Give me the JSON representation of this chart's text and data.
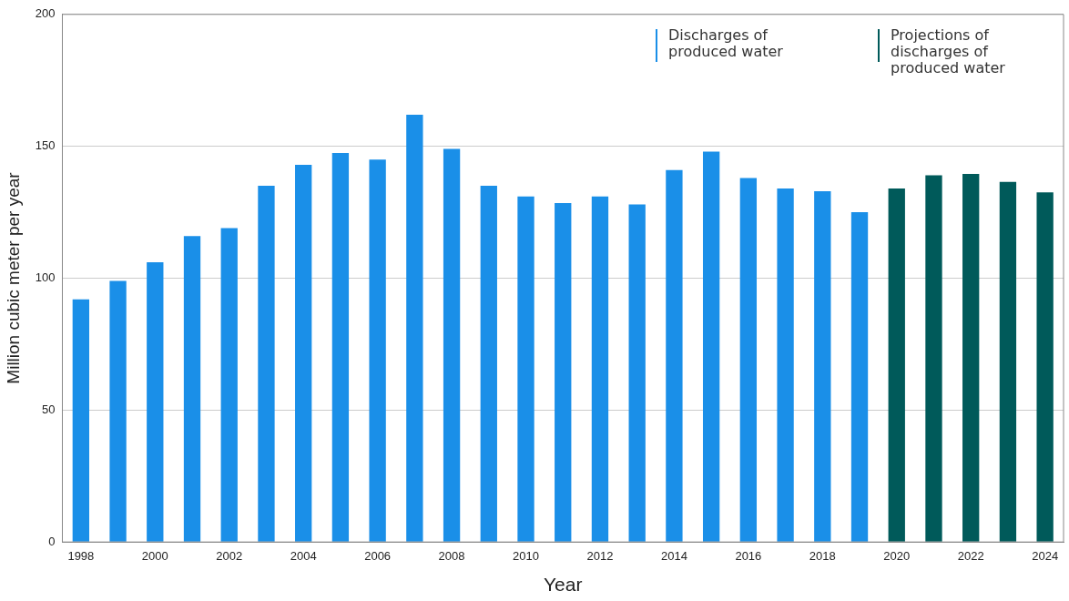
{
  "chart_data": {
    "type": "bar",
    "xlabel": "Year",
    "ylabel": "Million cubic meter per year",
    "categories": [
      "1998",
      null,
      "2000",
      null,
      "2002",
      null,
      "2004",
      null,
      "2006",
      null,
      "2008",
      null,
      "2010",
      null,
      "2012",
      null,
      "2014",
      null,
      "2016",
      null,
      "2018",
      null,
      "2020",
      null,
      "2022",
      null,
      "2024"
    ],
    "series": [
      {
        "name": "Discharges of produced water",
        "color": "#1a8fe8",
        "values": [
          92,
          99,
          106,
          116,
          119,
          135,
          143,
          147.5,
          145,
          162,
          149,
          135,
          131,
          128.5,
          131,
          128,
          141,
          148,
          138,
          134,
          133,
          125,
          null,
          null,
          null,
          null,
          null
        ]
      },
      {
        "name": "Projections of discharges of produced water",
        "color": "#005a5a",
        "values": [
          null,
          null,
          null,
          null,
          null,
          null,
          null,
          null,
          null,
          null,
          null,
          null,
          null,
          null,
          null,
          null,
          null,
          null,
          null,
          null,
          null,
          null,
          134,
          139,
          139.5,
          136.5,
          132.5
        ]
      }
    ],
    "ylim": [
      0,
      200
    ],
    "yticks": [
      0,
      50,
      100,
      150,
      200
    ],
    "grid": "y",
    "legend": "top right"
  }
}
